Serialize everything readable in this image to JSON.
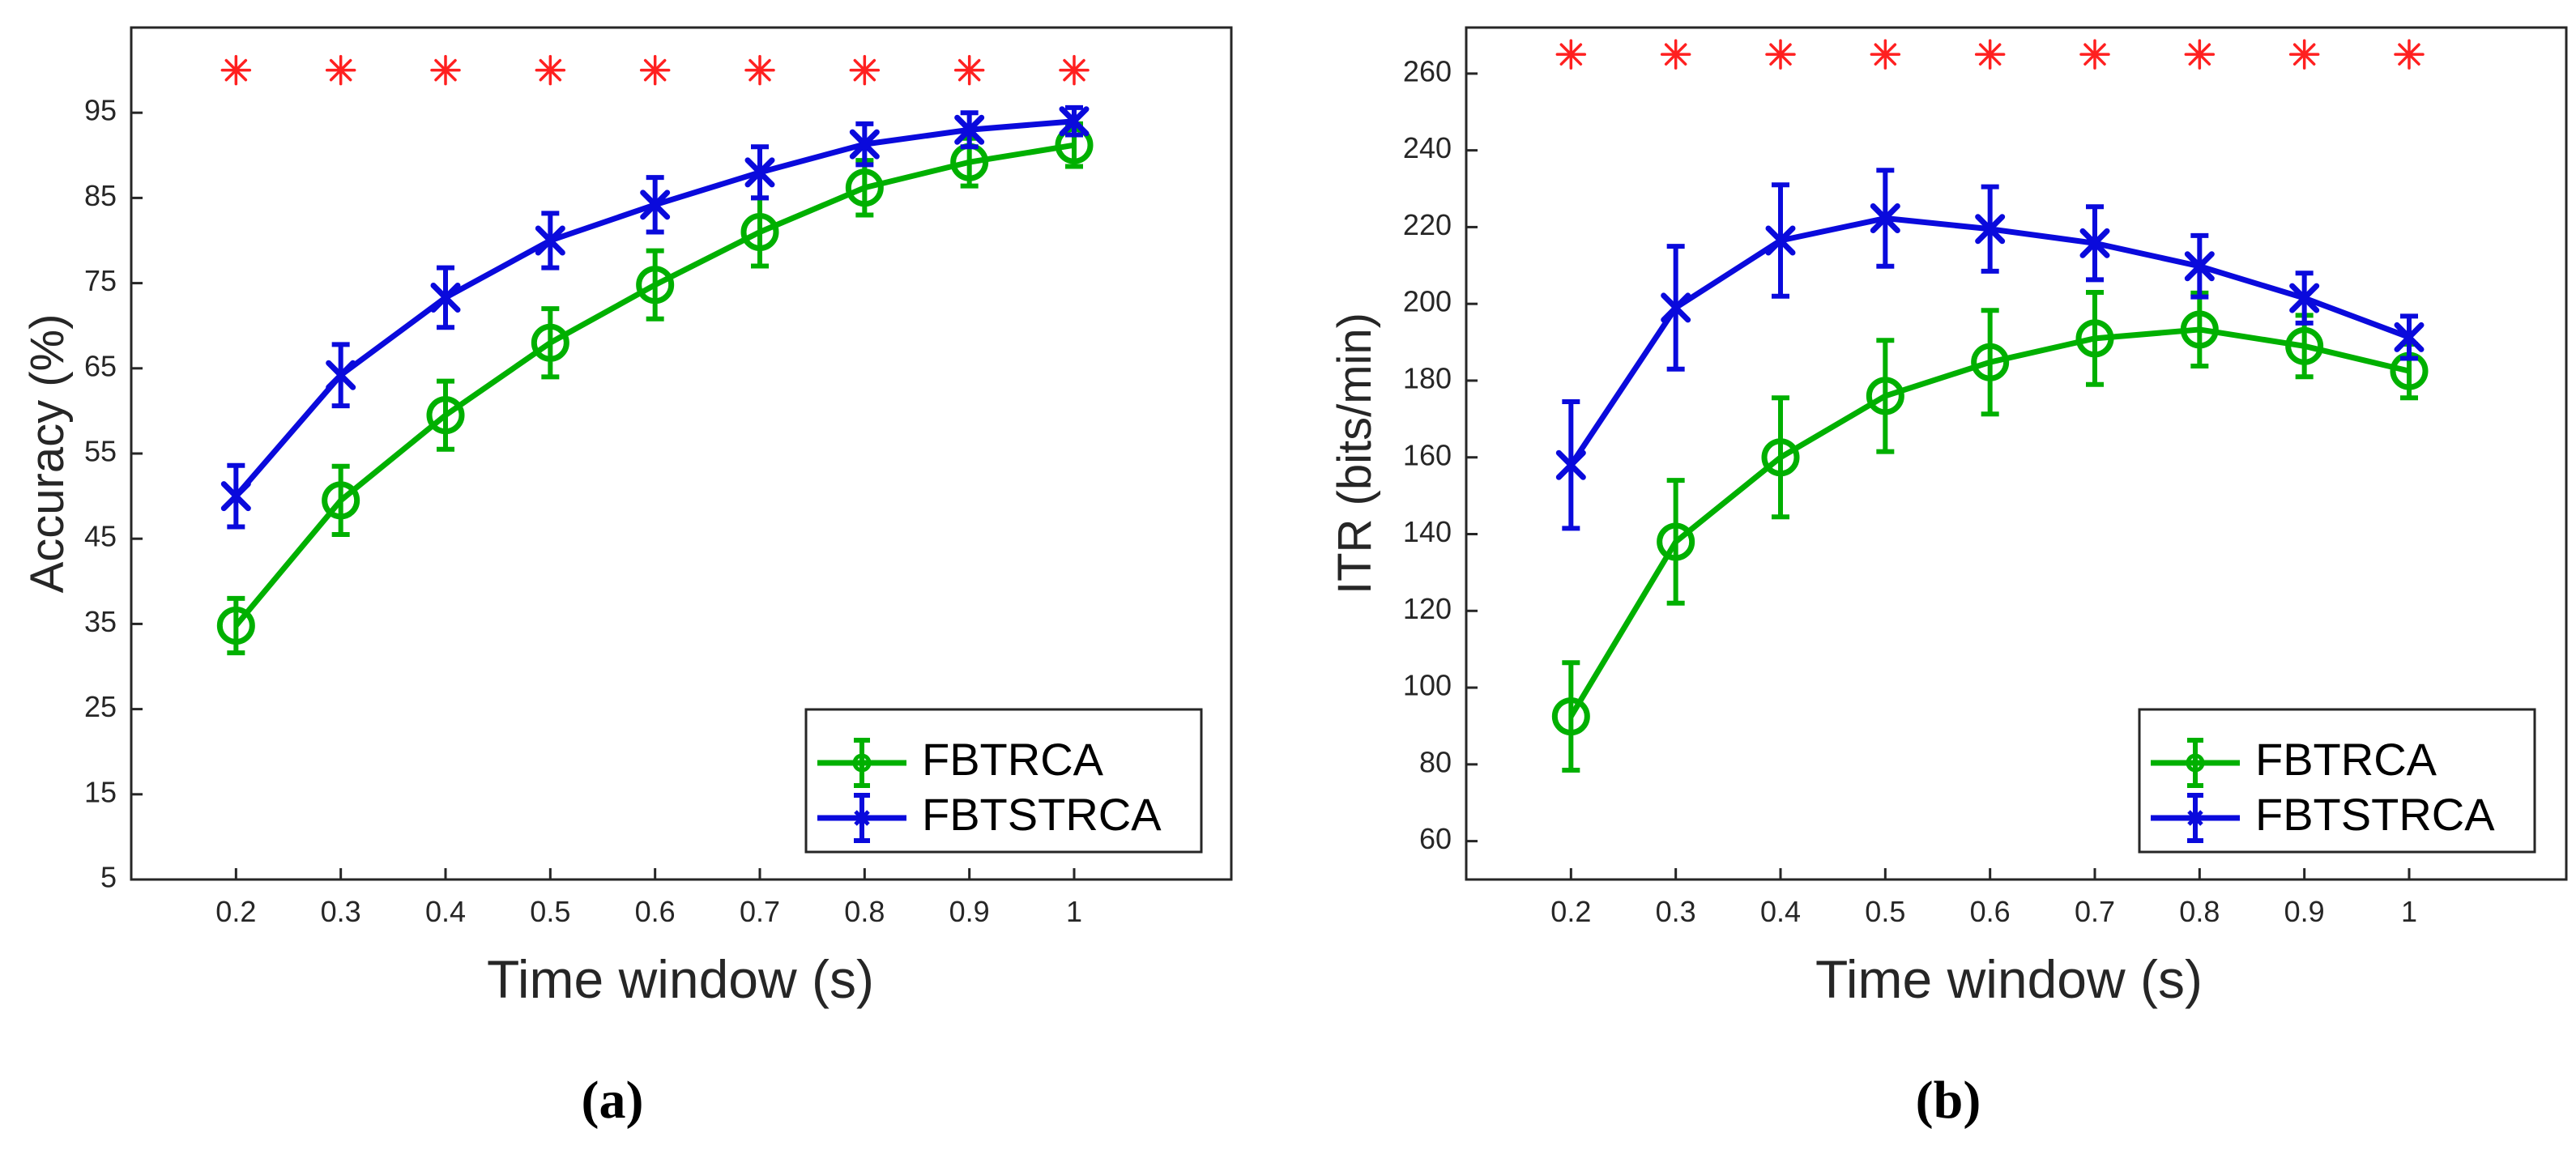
{
  "colors": {
    "fbtrca": "#00b000",
    "fbtstrca": "#0a0adc",
    "significance": "#ff2020",
    "axis": "#262626"
  },
  "chart_data": [
    {
      "type": "line",
      "panel_label": "(a)",
      "title": "",
      "xlabel": "Time window (s)",
      "ylabel": "Accuracy (%)",
      "xlim": [
        0.1,
        1.15
      ],
      "ylim": [
        5,
        105
      ],
      "x": [
        0.2,
        0.3,
        0.4,
        0.5,
        0.6,
        0.7,
        0.8,
        0.9,
        1.0
      ],
      "x_tick_labels": [
        "0.2",
        "0.3",
        "0.4",
        "0.5",
        "0.6",
        "0.7",
        "0.8",
        "0.9",
        "1"
      ],
      "y_ticks": [
        5,
        15,
        25,
        35,
        45,
        55,
        65,
        75,
        85,
        95
      ],
      "y_tick_labels": [
        "5",
        "15",
        "25",
        "35",
        "45",
        "55",
        "65",
        "75",
        "85",
        "95"
      ],
      "significance_y": 100,
      "significance_symbol": "*",
      "legend_position": "bottom-right",
      "series": [
        {
          "name": "FBTRCA",
          "marker": "circle",
          "values": [
            34.8,
            49.5,
            59.5,
            68,
            74.8,
            81,
            86.2,
            89.2,
            91.2
          ],
          "errors": [
            3.2,
            4,
            4,
            4,
            4,
            4,
            3.2,
            2.8,
            2.5
          ]
        },
        {
          "name": "FBTSTRCA",
          "marker": "x",
          "values": [
            50,
            64.2,
            73.3,
            80,
            84.2,
            88,
            91.3,
            93,
            94
          ],
          "errors": [
            3.6,
            3.6,
            3.5,
            3.2,
            3.2,
            3,
            2.4,
            2,
            1.6
          ]
        }
      ]
    },
    {
      "type": "line",
      "panel_label": "(b)",
      "title": "",
      "xlabel": "Time window (s)",
      "ylabel": "ITR (bits/min)",
      "xlim": [
        0.1,
        1.15
      ],
      "ylim": [
        50,
        272
      ],
      "x": [
        0.2,
        0.3,
        0.4,
        0.5,
        0.6,
        0.7,
        0.8,
        0.9,
        1.0
      ],
      "x_tick_labels": [
        "0.2",
        "0.3",
        "0.4",
        "0.5",
        "0.6",
        "0.7",
        "0.8",
        "0.9",
        "1"
      ],
      "y_ticks": [
        60,
        80,
        100,
        120,
        140,
        160,
        180,
        200,
        220,
        240,
        260
      ],
      "y_tick_labels": [
        "60",
        "80",
        "100",
        "120",
        "140",
        "160",
        "180",
        "200",
        "220",
        "240",
        "260"
      ],
      "significance_y": 265,
      "significance_symbol": "*",
      "legend_position": "bottom-right",
      "series": [
        {
          "name": "FBTRCA",
          "marker": "circle",
          "values": [
            92.5,
            138,
            160,
            176,
            184.8,
            191,
            193.3,
            189,
            182.5
          ],
          "errors": [
            14,
            16,
            15.5,
            14.5,
            13.5,
            12,
            9.5,
            8,
            7
          ]
        },
        {
          "name": "FBTSTRCA",
          "marker": "x",
          "values": [
            158,
            199,
            216.5,
            222.3,
            219.5,
            215.8,
            209.8,
            201.5,
            191.3
          ],
          "errors": [
            16.5,
            16,
            14.5,
            12.5,
            11,
            9.5,
            8,
            6.5,
            5.5
          ]
        }
      ]
    }
  ]
}
